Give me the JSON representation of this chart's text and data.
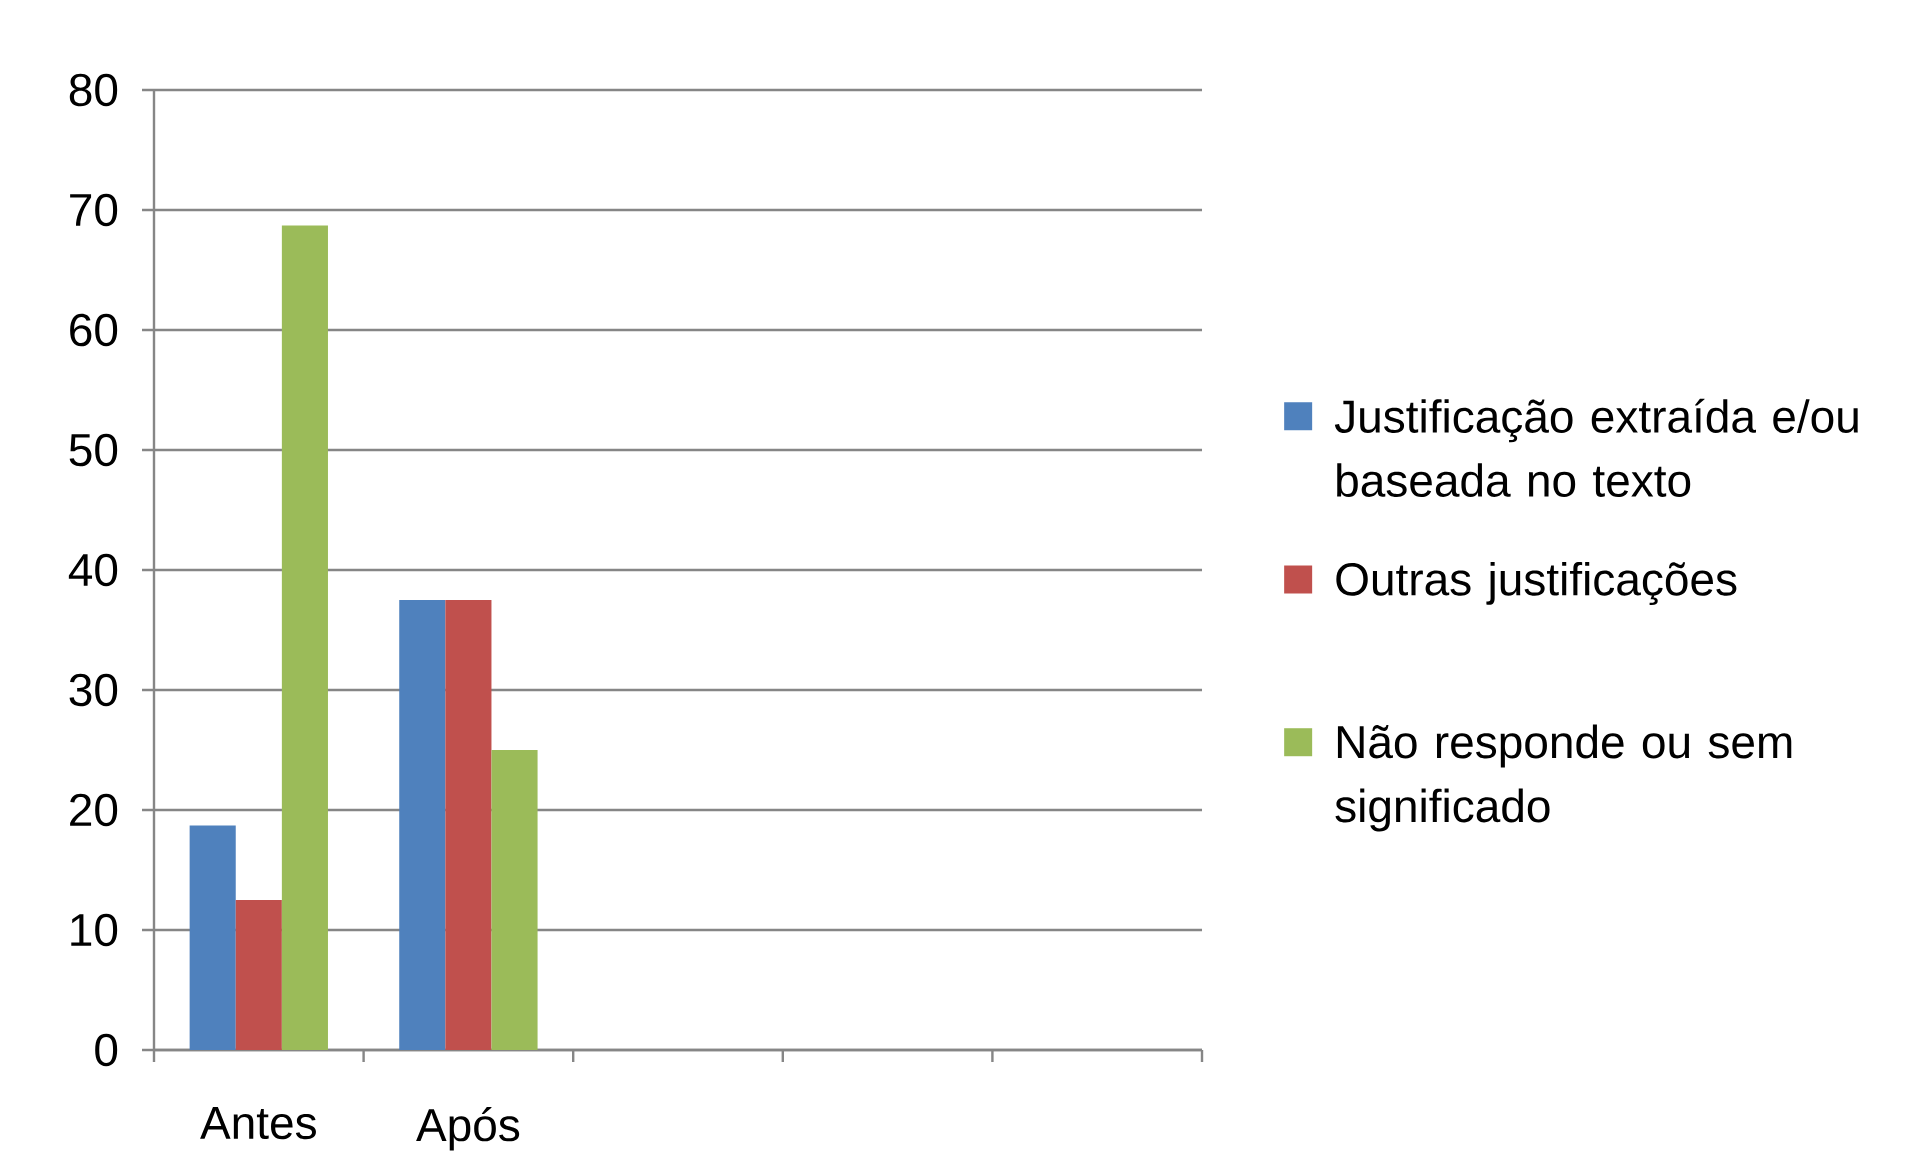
{
  "chart_data": {
    "type": "bar",
    "categories": [
      "Antes",
      "Após",
      null,
      null,
      null
    ],
    "series": [
      {
        "name": "Justificação extraída e/ou baseada no texto",
        "color": "#4f81bd",
        "values": [
          18.7,
          37.5,
          null,
          null,
          null
        ]
      },
      {
        "name": "Outras justificações",
        "color": "#c0504d",
        "values": [
          12.5,
          37.5,
          null,
          null,
          null
        ]
      },
      {
        "name": "Não responde ou sem significado",
        "color": "#9bbb59",
        "values": [
          68.7,
          25,
          null,
          null,
          null
        ]
      }
    ],
    "ylim": [
      0,
      80
    ],
    "yticks": [
      0,
      10,
      20,
      30,
      40,
      50,
      60,
      70,
      80
    ],
    "grid": "y",
    "legend": "right"
  }
}
